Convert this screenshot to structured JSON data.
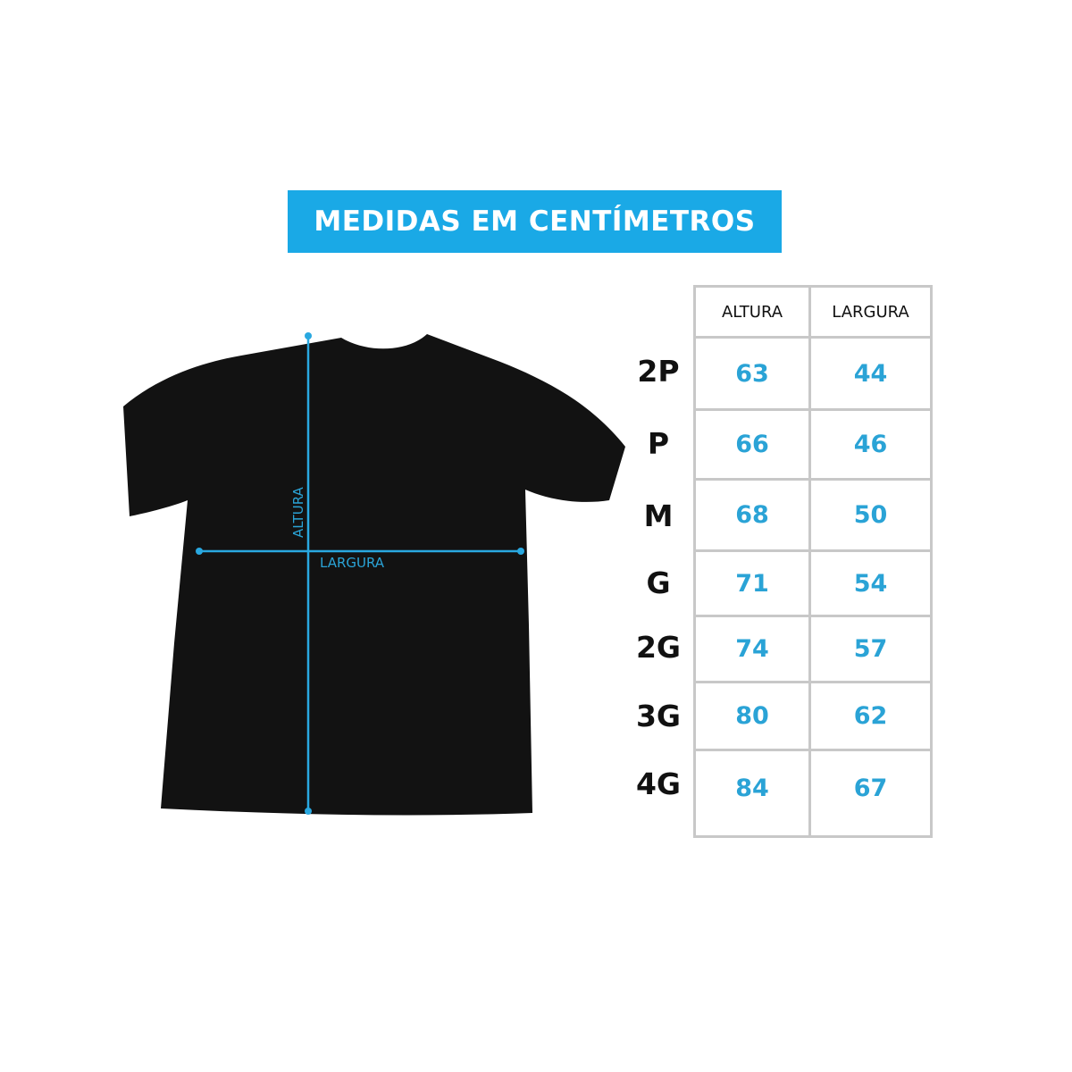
{
  "banner": {
    "title": "MEDIDAS EM CENTÍMETROS"
  },
  "diagram": {
    "height_label": "ALTURA",
    "width_label": "LARGURA",
    "accent_color": "#29a8e0",
    "shirt_color": "#111111"
  },
  "table": {
    "headers": [
      "ALTURA",
      "LARGURA"
    ],
    "rows": [
      {
        "size": "2P",
        "altura": "63",
        "largura": "44"
      },
      {
        "size": "P",
        "altura": "66",
        "largura": "46"
      },
      {
        "size": "M",
        "altura": "68",
        "largura": "50"
      },
      {
        "size": "G",
        "altura": "71",
        "largura": "54"
      },
      {
        "size": "2G",
        "altura": "74",
        "largura": "57"
      },
      {
        "size": "3G",
        "altura": "80",
        "largura": "62"
      },
      {
        "size": "4G",
        "altura": "84",
        "largura": "67"
      }
    ]
  }
}
